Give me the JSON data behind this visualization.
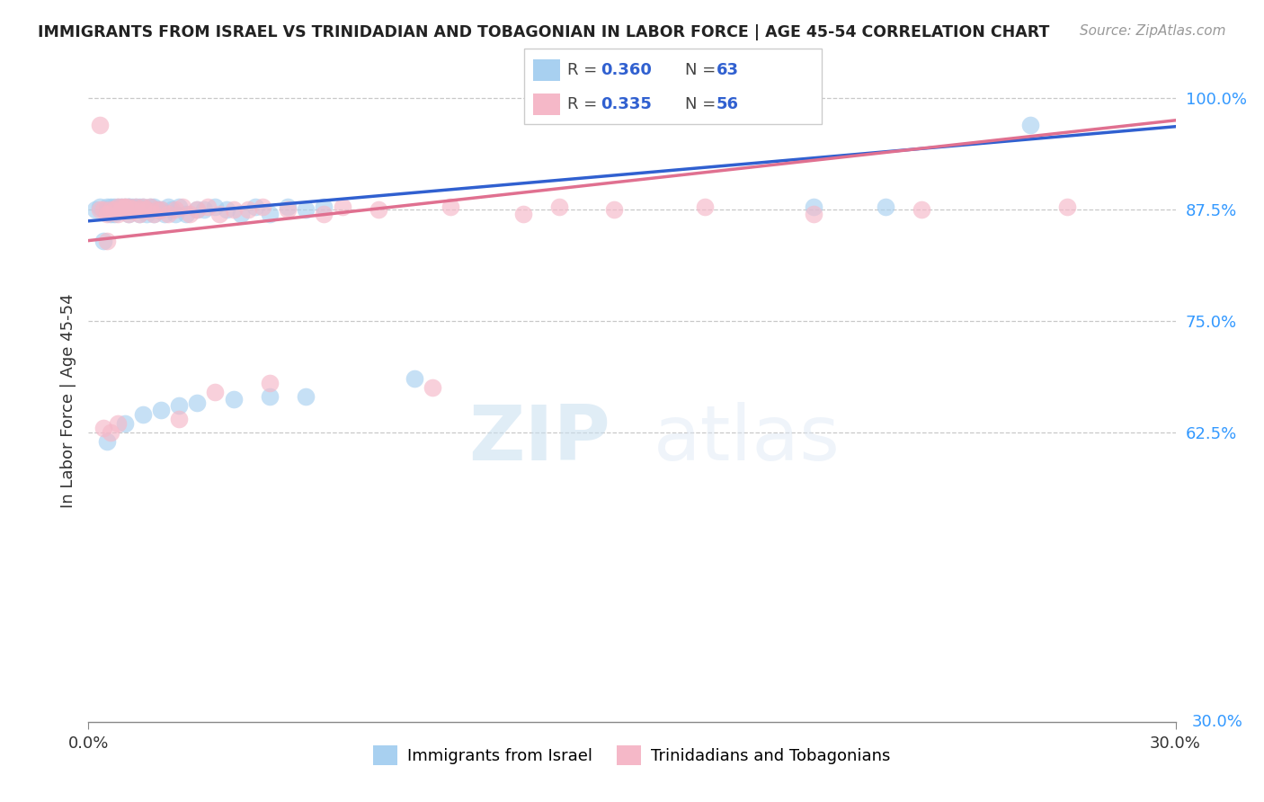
{
  "title": "IMMIGRANTS FROM ISRAEL VS TRINIDADIAN AND TOBAGONIAN IN LABOR FORCE | AGE 45-54 CORRELATION CHART",
  "source": "Source: ZipAtlas.com",
  "ylabel": "In Labor Force | Age 45-54",
  "xlim": [
    0.0,
    0.3
  ],
  "ylim": [
    0.3,
    1.02
  ],
  "ytick_positions": [
    0.625,
    0.75,
    0.875,
    1.0
  ],
  "ytick_labels": [
    "62.5%",
    "75.0%",
    "87.5%",
    "100.0%"
  ],
  "color_israel": "#a8d0f0",
  "color_tt": "#f5b8c8",
  "line_color_israel": "#3060d0",
  "line_color_tt": "#e07090",
  "legend_R_israel": "0.360",
  "legend_N_israel": "63",
  "legend_R_tt": "0.335",
  "legend_N_tt": "56",
  "legend_label_israel": "Immigrants from Israel",
  "legend_label_tt": "Trinidadians and Tobagonians",
  "watermark_zip": "ZIP",
  "watermark_atlas": "atlas",
  "israel_x": [
    0.002,
    0.003,
    0.004,
    0.005,
    0.005,
    0.006,
    0.006,
    0.007,
    0.007,
    0.008,
    0.008,
    0.009,
    0.009,
    0.01,
    0.01,
    0.01,
    0.011,
    0.011,
    0.011,
    0.012,
    0.012,
    0.013,
    0.013,
    0.014,
    0.014,
    0.015,
    0.015,
    0.016,
    0.016,
    0.017,
    0.018,
    0.018,
    0.019,
    0.02,
    0.021,
    0.022,
    0.023,
    0.024,
    0.025,
    0.027,
    0.03,
    0.032,
    0.035,
    0.038,
    0.042,
    0.046,
    0.05,
    0.055,
    0.06,
    0.065,
    0.005,
    0.01,
    0.015,
    0.02,
    0.025,
    0.03,
    0.04,
    0.05,
    0.06,
    0.09,
    0.2,
    0.22,
    0.26
  ],
  "israel_y": [
    0.875,
    0.878,
    0.84,
    0.875,
    0.878,
    0.87,
    0.878,
    0.87,
    0.878,
    0.875,
    0.878,
    0.875,
    0.878,
    0.875,
    0.878,
    0.875,
    0.878,
    0.87,
    0.878,
    0.878,
    0.875,
    0.875,
    0.878,
    0.87,
    0.878,
    0.878,
    0.875,
    0.875,
    0.87,
    0.878,
    0.87,
    0.878,
    0.875,
    0.875,
    0.87,
    0.878,
    0.875,
    0.87,
    0.878,
    0.87,
    0.875,
    0.875,
    0.878,
    0.875,
    0.87,
    0.878,
    0.87,
    0.878,
    0.875,
    0.878,
    0.615,
    0.635,
    0.645,
    0.65,
    0.655,
    0.658,
    0.662,
    0.665,
    0.665,
    0.685,
    0.878,
    0.878,
    0.97
  ],
  "tt_x": [
    0.003,
    0.004,
    0.005,
    0.006,
    0.007,
    0.008,
    0.008,
    0.009,
    0.009,
    0.01,
    0.01,
    0.011,
    0.011,
    0.012,
    0.013,
    0.013,
    0.014,
    0.015,
    0.016,
    0.017,
    0.018,
    0.019,
    0.02,
    0.022,
    0.024,
    0.026,
    0.028,
    0.03,
    0.033,
    0.036,
    0.04,
    0.044,
    0.048,
    0.055,
    0.065,
    0.08,
    0.1,
    0.12,
    0.145,
    0.17,
    0.2,
    0.23,
    0.27,
    0.003,
    0.005,
    0.01,
    0.015,
    0.025,
    0.035,
    0.05,
    0.07,
    0.095,
    0.13,
    0.004,
    0.006,
    0.008
  ],
  "tt_y": [
    0.875,
    0.875,
    0.87,
    0.875,
    0.875,
    0.878,
    0.87,
    0.875,
    0.878,
    0.875,
    0.878,
    0.87,
    0.878,
    0.875,
    0.875,
    0.878,
    0.87,
    0.875,
    0.875,
    0.878,
    0.87,
    0.875,
    0.875,
    0.87,
    0.875,
    0.878,
    0.87,
    0.875,
    0.878,
    0.87,
    0.875,
    0.875,
    0.878,
    0.875,
    0.87,
    0.875,
    0.878,
    0.87,
    0.875,
    0.878,
    0.87,
    0.875,
    0.878,
    0.97,
    0.84,
    0.878,
    0.878,
    0.64,
    0.67,
    0.68,
    0.878,
    0.675,
    0.878,
    0.63,
    0.625,
    0.635
  ],
  "israel_trend_x": [
    0.0,
    0.3
  ],
  "israel_trend_y": [
    0.862,
    0.968
  ],
  "tt_trend_x": [
    0.0,
    0.3
  ],
  "tt_trend_y": [
    0.84,
    0.975
  ]
}
